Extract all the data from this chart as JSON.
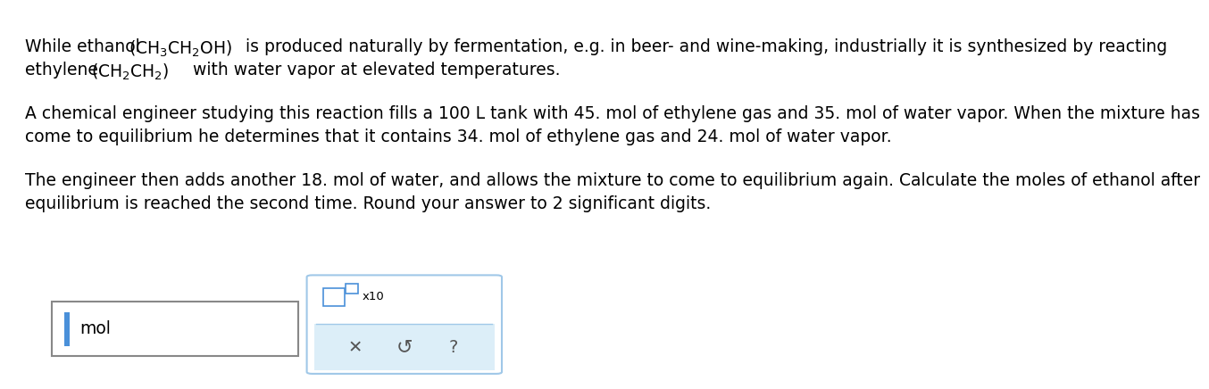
{
  "bg_color": "#ffffff",
  "text_color": "#000000",
  "font_size": 13.5,
  "para2": "A chemical engineer studying this reaction fills a 100 L tank with 45. mol of ethylene gas and 35. mol of water vapor. When the mixture has\ncome to equilibrium he determines that it contains 34. mol of ethylene gas and 24. mol of water vapor.",
  "para3": "The engineer then adds another 18. mol of water, and allows the mixture to come to equilibrium again. Calculate the moles of ethanol after\nequilibrium is reached the second time. Round your answer to 2 significant digits.",
  "mol_label": "mol",
  "cursor_color": "#4a90d9",
  "box2_border_color": "#a0c8e8",
  "box2_fill_color": "#dceef8",
  "icon_color": "#555555"
}
